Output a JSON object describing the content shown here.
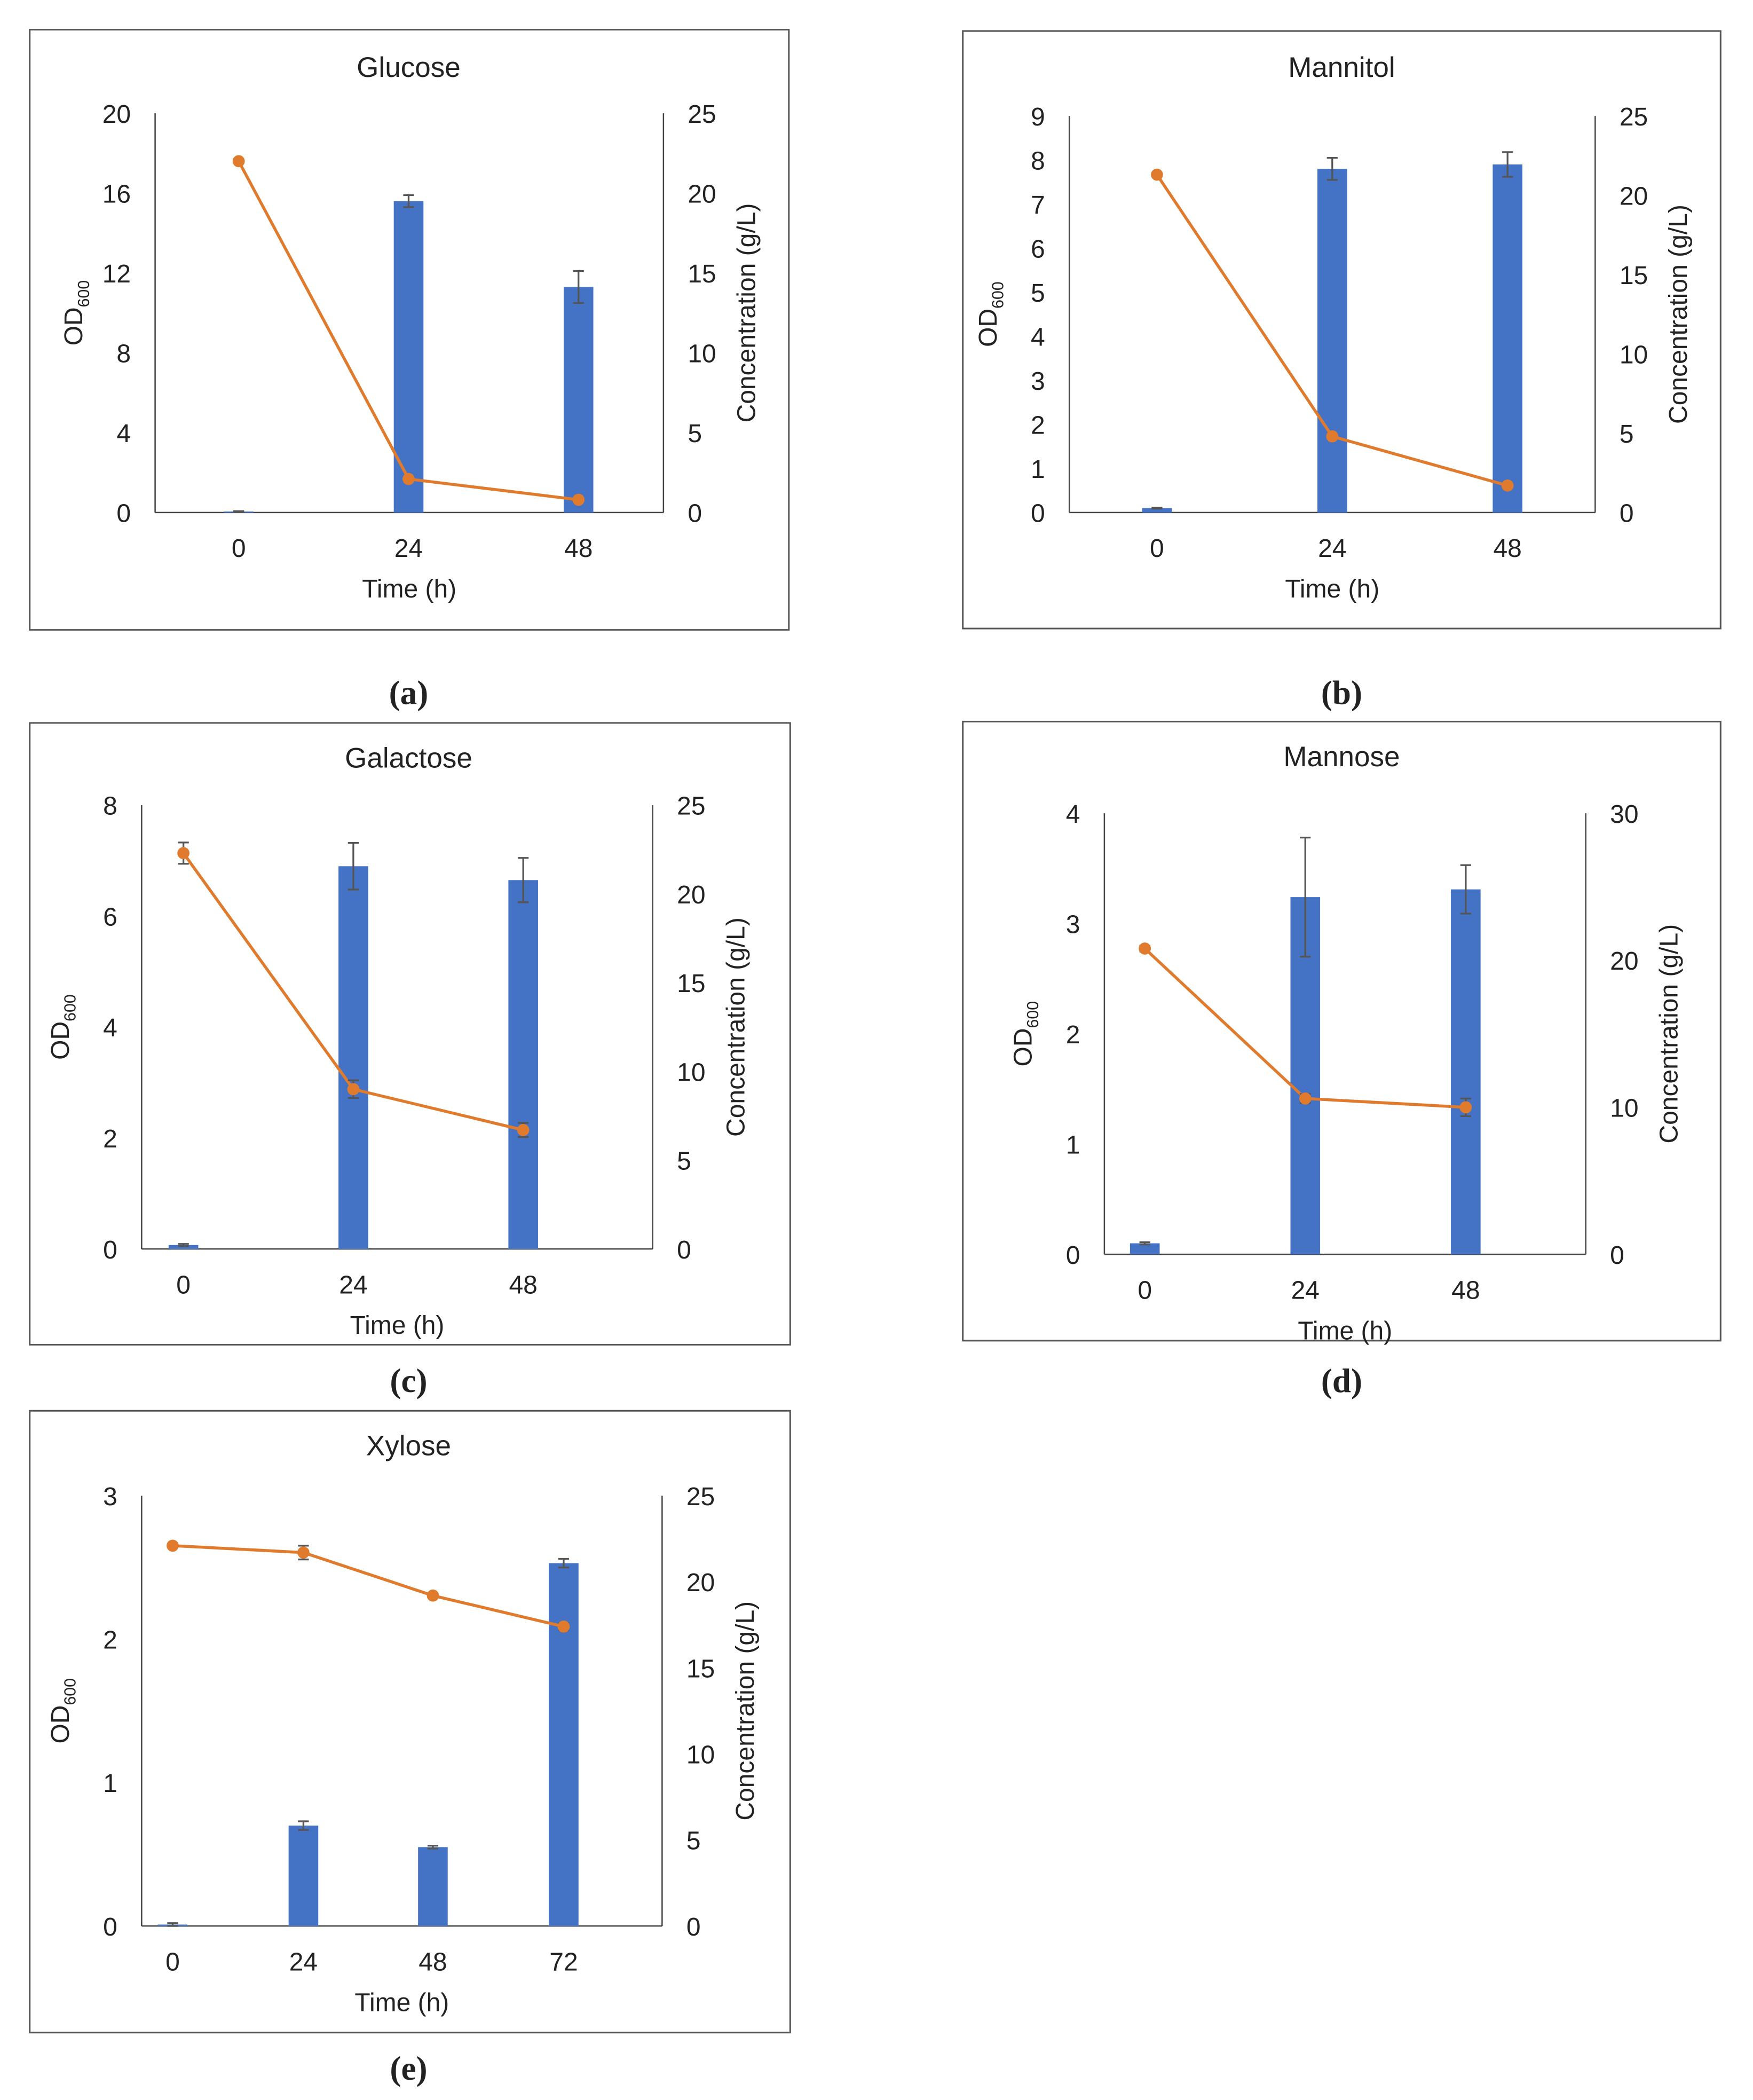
{
  "colors": {
    "bar": "#4472C4",
    "line": "#E07B2E",
    "error_bar": "#555555",
    "axis": "#444444"
  },
  "chart_data": [
    {
      "caption": "(a)",
      "title": "Glucose",
      "type": "bar+line",
      "xlabel": "Time (h)",
      "ylabel_main": "OD",
      "ylabel_sub": "600",
      "y2label": "Concentration (g/L)",
      "categories": [
        "0",
        "24",
        "48"
      ],
      "ylim": [
        0,
        20
      ],
      "yticks": [
        0,
        4,
        8,
        12,
        16,
        20
      ],
      "y2lim": [
        0,
        25
      ],
      "y2ticks": [
        0,
        5,
        10,
        15,
        20,
        25
      ],
      "od_values": [
        0.05,
        15.6,
        11.3
      ],
      "od_errors": [
        0.02,
        0.3,
        0.8
      ],
      "conc_values": [
        22.0,
        2.1,
        0.8
      ],
      "conc_errors": [
        0,
        0,
        0
      ]
    },
    {
      "caption": "(b)",
      "title": "Mannitol",
      "type": "bar+line",
      "xlabel": "Time (h)",
      "ylabel_main": "OD",
      "ylabel_sub": "600",
      "y2label": "Concentration (g/L)",
      "categories": [
        "0",
        "24",
        "48"
      ],
      "ylim": [
        0,
        9
      ],
      "yticks": [
        0,
        1,
        2,
        3,
        4,
        5,
        6,
        7,
        8,
        9
      ],
      "y2lim": [
        0,
        25
      ],
      "y2ticks": [
        0,
        5,
        10,
        15,
        20,
        25
      ],
      "od_values": [
        0.1,
        7.8,
        7.9
      ],
      "od_errors": [
        0.01,
        0.25,
        0.28
      ],
      "conc_values": [
        21.3,
        4.8,
        1.7
      ],
      "conc_errors": [
        0,
        0,
        0
      ]
    },
    {
      "caption": "(c)",
      "title": "Galactose",
      "type": "bar+line",
      "xlabel": "Time (h)",
      "ylabel_main": "OD",
      "ylabel_sub": "600",
      "y2label": "Concentration (g/L)",
      "categories": [
        "0",
        "24",
        "48"
      ],
      "ylim": [
        0,
        8
      ],
      "yticks": [
        0,
        2,
        4,
        6,
        8
      ],
      "y2lim": [
        0,
        25
      ],
      "y2ticks": [
        0,
        5,
        10,
        15,
        20,
        25
      ],
      "od_values": [
        0.07,
        6.9,
        6.65
      ],
      "od_errors": [
        0.02,
        0.42,
        0.4
      ],
      "conc_values": [
        22.3,
        9.0,
        6.7
      ],
      "conc_errors": [
        0.6,
        0.5,
        0.4
      ]
    },
    {
      "caption": "(d)",
      "title": "Mannose",
      "type": "bar+line",
      "xlabel": "Time (h)",
      "ylabel_main": "OD",
      "ylabel_sub": "600",
      "y2label": "Concentration (g/L)",
      "categories": [
        "0",
        "24",
        "48"
      ],
      "ylim": [
        0,
        4
      ],
      "yticks": [
        0,
        1,
        2,
        3,
        4
      ],
      "y2lim": [
        0,
        30
      ],
      "y2ticks": [
        0,
        10,
        20,
        30
      ],
      "od_values": [
        0.1,
        3.24,
        3.31
      ],
      "od_errors": [
        0.01,
        0.54,
        0.22
      ],
      "conc_values": [
        20.8,
        10.6,
        10.0
      ],
      "conc_errors": [
        0.2,
        0.3,
        0.6
      ]
    },
    {
      "caption": "(e)",
      "title": "Xylose",
      "type": "bar+line",
      "xlabel": "Time (h)",
      "ylabel_main": "OD",
      "ylabel_sub": "600",
      "y2label": "Concentration (g/L)",
      "categories": [
        "0",
        "24",
        "48",
        "72"
      ],
      "ylim": [
        0,
        3
      ],
      "yticks": [
        0,
        1,
        2,
        3
      ],
      "y2lim": [
        0,
        25
      ],
      "y2ticks": [
        0,
        5,
        10,
        15,
        20,
        25
      ],
      "od_values": [
        0.01,
        0.7,
        0.55,
        2.53
      ],
      "od_errors": [
        0.01,
        0.03,
        0.01,
        0.03
      ],
      "conc_values": [
        22.1,
        21.7,
        19.2,
        17.4
      ],
      "conc_errors": [
        0.1,
        0.4,
        0.1,
        0.2
      ]
    }
  ]
}
